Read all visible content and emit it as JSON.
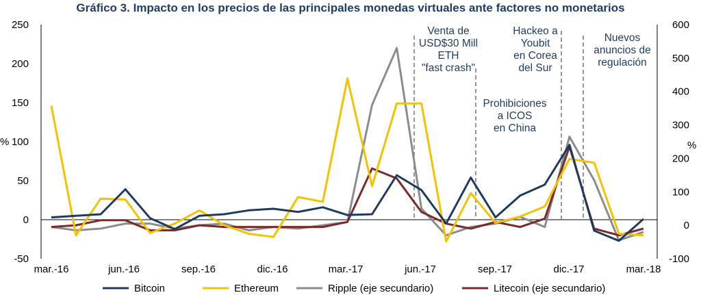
{
  "chart_data": {
    "type": "line",
    "title": "Gráfico 3. Impacto en los precios de las principales monedas virtuales ante factores no monetarios",
    "ylabel": "%",
    "y2label": "%",
    "ylim": [
      -50,
      250
    ],
    "y2lim": [
      -100,
      600
    ],
    "yticks": [
      "250",
      "200",
      "150",
      "100",
      "50",
      "0",
      "-50"
    ],
    "y2ticks": [
      "600",
      "500",
      "400",
      "300",
      "200",
      "100",
      "0",
      "-100"
    ],
    "xtick_labels": [
      "mar.-16",
      "jun.-16",
      "sep.-16",
      "dic.-16",
      "mar.-17",
      "jun.-17",
      "sep.-17",
      "dic.-17",
      "mar.-18"
    ],
    "series": [
      {
        "name": "Bitcoin",
        "axis": "primary",
        "color": "#1f3a5f",
        "values": [
          3,
          5,
          7,
          39,
          2,
          -12,
          5,
          7,
          12,
          14,
          10,
          16,
          6,
          7,
          57,
          38,
          -5,
          54,
          3,
          31,
          45,
          96,
          -14,
          -27,
          1
        ]
      },
      {
        "name": "Ethereum",
        "axis": "primary",
        "color": "#f5c200",
        "values": [
          146,
          -20,
          27,
          26,
          -17,
          -5,
          12,
          -7,
          -18,
          -22,
          29,
          23,
          181,
          43,
          149,
          149,
          -28,
          34,
          -4,
          4,
          17,
          78,
          73,
          -18,
          -20
        ]
      },
      {
        "name": "Ripple  (eje secundario)",
        "axis": "secondary",
        "color": "#8c8c8c",
        "values": [
          -5,
          -15,
          -10,
          5,
          5,
          -10,
          0,
          5,
          -15,
          -5,
          -10,
          0,
          10,
          360,
          530,
          50,
          -30,
          -5,
          5,
          25,
          -5,
          265,
          135,
          -45,
          -20
        ]
      },
      {
        "name": "Litecoin (eje secundario)",
        "axis": "secondary",
        "color": "#7b2a2a",
        "values": [
          -5,
          0,
          15,
          15,
          -15,
          -15,
          0,
          -5,
          -5,
          -5,
          -5,
          -5,
          10,
          170,
          140,
          40,
          5,
          -10,
          10,
          -5,
          20,
          235,
          -10,
          -30,
          -10
        ]
      }
    ],
    "annotations": [
      {
        "lines": [
          "Venta de",
          "USD$30 Mill",
          "ETH",
          "\"fast crash\""
        ]
      },
      {
        "lines": [
          "Prohibiciones",
          "a ICOS",
          "en China"
        ]
      },
      {
        "lines": [
          "Hackeo a",
          "Youbit",
          "en Corea",
          "del Sur"
        ]
      },
      {
        "lines": [
          "Nuevos",
          "anuncios de",
          "regulación"
        ]
      }
    ],
    "legend_position": "bottom",
    "grid": false
  }
}
